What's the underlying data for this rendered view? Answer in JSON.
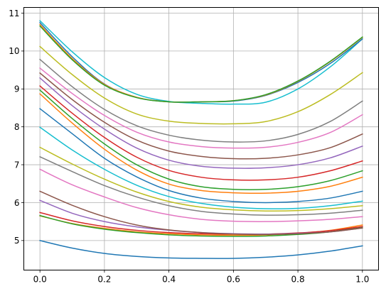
{
  "chart_data": {
    "type": "line",
    "title": "",
    "xlabel": "",
    "ylabel": "",
    "xlim": [
      -0.05,
      1.05
    ],
    "ylim": [
      4.22,
      11.15
    ],
    "grid": true,
    "legend": "none",
    "x": [
      0,
      0.1,
      0.2,
      0.3,
      0.4,
      0.5,
      0.6,
      0.7,
      0.8,
      0.9,
      1.0
    ],
    "x_ticks": [
      "0.0",
      "0.2",
      "0.4",
      "0.6",
      "0.8",
      "1.0"
    ],
    "y_ticks": [
      "5",
      "6",
      "7",
      "8",
      "9",
      "10",
      "11"
    ],
    "series": [
      {
        "color": "#1f77b4",
        "values": [
          5.0,
          4.8,
          4.66,
          4.58,
          4.54,
          4.53,
          4.53,
          4.56,
          4.62,
          4.72,
          4.86
        ]
      },
      {
        "color": "#ff7f0e",
        "values": [
          5.65,
          5.45,
          5.32,
          5.23,
          5.18,
          5.15,
          5.14,
          5.15,
          5.19,
          5.27,
          5.41
        ]
      },
      {
        "color": "#2ca02c",
        "values": [
          5.66,
          5.44,
          5.3,
          5.21,
          5.15,
          5.12,
          5.11,
          5.12,
          5.16,
          5.23,
          5.36
        ]
      },
      {
        "color": "#d62728",
        "values": [
          5.74,
          5.52,
          5.37,
          5.27,
          5.21,
          5.18,
          5.17,
          5.17,
          5.2,
          5.26,
          5.37
        ]
      },
      {
        "color": "#9467bd",
        "values": [
          6.06,
          5.72,
          5.5,
          5.36,
          5.27,
          5.21,
          5.18,
          5.17,
          5.19,
          5.23,
          5.33
        ]
      },
      {
        "color": "#8c564b",
        "values": [
          6.3,
          5.93,
          5.63,
          5.41,
          5.28,
          5.21,
          5.17,
          5.16,
          5.18,
          5.23,
          5.33
        ]
      },
      {
        "color": "#e377c2",
        "values": [
          6.88,
          6.47,
          6.15,
          5.87,
          5.68,
          5.56,
          5.51,
          5.5,
          5.52,
          5.56,
          5.63
        ]
      },
      {
        "color": "#7f7f7f",
        "values": [
          7.21,
          6.82,
          6.45,
          6.15,
          5.92,
          5.77,
          5.7,
          5.67,
          5.68,
          5.72,
          5.8
        ]
      },
      {
        "color": "#bcbd22",
        "values": [
          7.46,
          7.02,
          6.62,
          6.28,
          6.03,
          5.88,
          5.81,
          5.78,
          5.79,
          5.84,
          5.92
        ]
      },
      {
        "color": "#17becf",
        "values": [
          7.99,
          7.39,
          6.88,
          6.46,
          6.16,
          5.98,
          5.88,
          5.84,
          5.85,
          5.92,
          6.04
        ]
      },
      {
        "color": "#1f77b4",
        "values": [
          8.48,
          7.82,
          7.17,
          6.68,
          6.32,
          6.12,
          6.03,
          6.0,
          6.03,
          6.12,
          6.3
        ]
      },
      {
        "color": "#ff7f0e",
        "values": [
          8.87,
          8.1,
          7.41,
          6.86,
          6.49,
          6.32,
          6.26,
          6.25,
          6.3,
          6.43,
          6.67
        ]
      },
      {
        "color": "#2ca02c",
        "values": [
          8.97,
          8.22,
          7.55,
          7.0,
          6.62,
          6.42,
          6.35,
          6.35,
          6.42,
          6.58,
          6.84
        ]
      },
      {
        "color": "#d62728",
        "values": [
          9.08,
          8.36,
          7.72,
          7.2,
          6.85,
          6.67,
          6.6,
          6.6,
          6.67,
          6.84,
          7.1
        ]
      },
      {
        "color": "#9467bd",
        "values": [
          9.29,
          8.56,
          7.94,
          7.44,
          7.12,
          6.96,
          6.91,
          6.92,
          7.0,
          7.18,
          7.49
        ]
      },
      {
        "color": "#8c564b",
        "values": [
          9.42,
          8.72,
          8.12,
          7.65,
          7.36,
          7.22,
          7.16,
          7.17,
          7.26,
          7.45,
          7.81
        ]
      },
      {
        "color": "#e377c2",
        "values": [
          9.55,
          8.88,
          8.3,
          7.86,
          7.6,
          7.48,
          7.44,
          7.46,
          7.59,
          7.85,
          8.32
        ]
      },
      {
        "color": "#7f7f7f",
        "values": [
          9.78,
          9.06,
          8.46,
          8.03,
          7.78,
          7.65,
          7.6,
          7.63,
          7.8,
          8.14,
          8.68
        ]
      },
      {
        "color": "#bcbd22",
        "values": [
          10.12,
          9.38,
          8.76,
          8.34,
          8.15,
          8.09,
          8.08,
          8.14,
          8.4,
          8.85,
          9.43
        ]
      },
      {
        "color": "#17becf",
        "values": [
          10.8,
          9.98,
          9.3,
          8.86,
          8.67,
          8.62,
          8.6,
          8.65,
          9.0,
          9.58,
          10.32
        ]
      },
      {
        "color": "#1f77b4",
        "values": [
          10.75,
          9.85,
          9.13,
          8.78,
          8.66,
          8.66,
          8.68,
          8.83,
          9.17,
          9.67,
          10.32
        ]
      },
      {
        "color": "#ff7f0e",
        "values": [
          10.7,
          9.8,
          9.12,
          8.78,
          8.66,
          8.66,
          8.69,
          8.84,
          9.2,
          9.72,
          10.36
        ]
      },
      {
        "color": "#2ca02c",
        "values": [
          10.66,
          9.77,
          9.1,
          8.77,
          8.66,
          8.66,
          8.69,
          8.85,
          9.21,
          9.73,
          10.37
        ]
      }
    ]
  }
}
